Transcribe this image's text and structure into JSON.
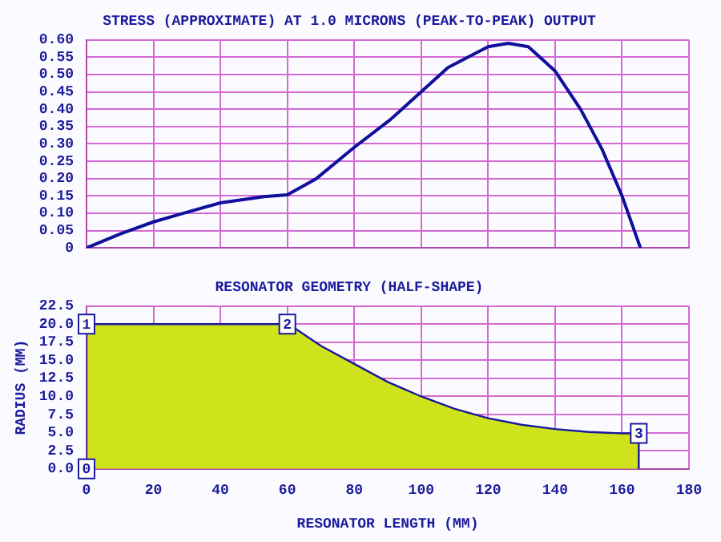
{
  "chart_data": [
    {
      "type": "line",
      "title": "STRESS (APPROXIMATE) AT 1.0 MICRONS (PEAK-TO-PEAK) OUTPUT",
      "series": [
        {
          "color": "#10109c",
          "x": [
            0,
            10,
            20,
            29,
            40,
            53,
            60,
            68.7,
            80,
            90.8,
            100,
            108,
            120,
            126,
            132,
            140,
            147.6,
            154,
            160,
            165.5
          ],
          "values": [
            0,
            0.04,
            0.075,
            0.1,
            0.13,
            0.148,
            0.153,
            0.2,
            0.29,
            0.37,
            0.45,
            0.52,
            0.58,
            0.59,
            0.58,
            0.51,
            0.4,
            0.285,
            0.15,
            0
          ]
        }
      ],
      "xlim": [
        0,
        180
      ],
      "xticks": [
        {
          "value": 0,
          "label": null
        },
        {
          "value": 20,
          "label": null
        },
        {
          "value": 40,
          "label": null
        },
        {
          "value": 60,
          "label": null
        },
        {
          "value": 80,
          "label": null
        },
        {
          "value": 100,
          "label": null
        },
        {
          "value": 120,
          "label": null
        },
        {
          "value": 140,
          "label": null
        },
        {
          "value": 160,
          "label": null
        },
        {
          "value": 180,
          "label": null
        }
      ],
      "ylim": [
        0,
        0.6
      ],
      "yticks": [
        0,
        0.05,
        {
          "value": 0.1,
          "label": "0.10"
        },
        0.15,
        {
          "value": 0.2,
          "label": "0.20"
        },
        0.25,
        {
          "value": 0.3,
          "label": "0.30"
        },
        0.35,
        {
          "value": 0.4,
          "label": "0.40"
        },
        0.45,
        {
          "value": 0.5,
          "label": "0.50"
        },
        0.55,
        {
          "value": 0.6,
          "label": "0.60"
        }
      ],
      "grid": true,
      "tick_labels": "y",
      "marker": "none"
    },
    {
      "type": "area",
      "title": "RESONATOR GEOMETRY (HALF-SHAPE)",
      "xlabel": "RESONATOR LENGTH (MM)",
      "ylabel": "RADIUS (MM)",
      "series": [
        {
          "color": "#cfe31c",
          "x": [
            0,
            0,
            60,
            62,
            70,
            80,
            90,
            100,
            110,
            120,
            130,
            140,
            150,
            160,
            165,
            165
          ],
          "values": [
            0,
            20,
            20,
            19.5,
            17,
            14.5,
            12,
            10,
            8.3,
            7,
            6.1,
            5.5,
            5.1,
            4.9,
            4.9,
            0
          ]
        }
      ],
      "xlim": [
        0,
        180
      ],
      "xticks": [
        0,
        20,
        40,
        60,
        80,
        100,
        120,
        140,
        160,
        180
      ],
      "ylim": [
        0,
        22.5
      ],
      "yticks": [
        {
          "value": 0,
          "label": "0.0"
        },
        2.5,
        {
          "value": 5,
          "label": "5.0"
        },
        7.5,
        {
          "value": 10,
          "label": "10.0"
        },
        12.5,
        {
          "value": 15,
          "label": "15.0"
        },
        17.5,
        {
          "value": 20,
          "label": "20.0"
        },
        22.5
      ],
      "grid": true,
      "marker": "none",
      "annotations": [
        {
          "text": "0",
          "x": 0,
          "y": 0
        },
        {
          "text": "1",
          "x": 0,
          "y": 20
        },
        {
          "text": "2",
          "x": 60,
          "y": 20
        },
        {
          "text": "3",
          "x": 165,
          "y": 4.9
        }
      ]
    }
  ]
}
